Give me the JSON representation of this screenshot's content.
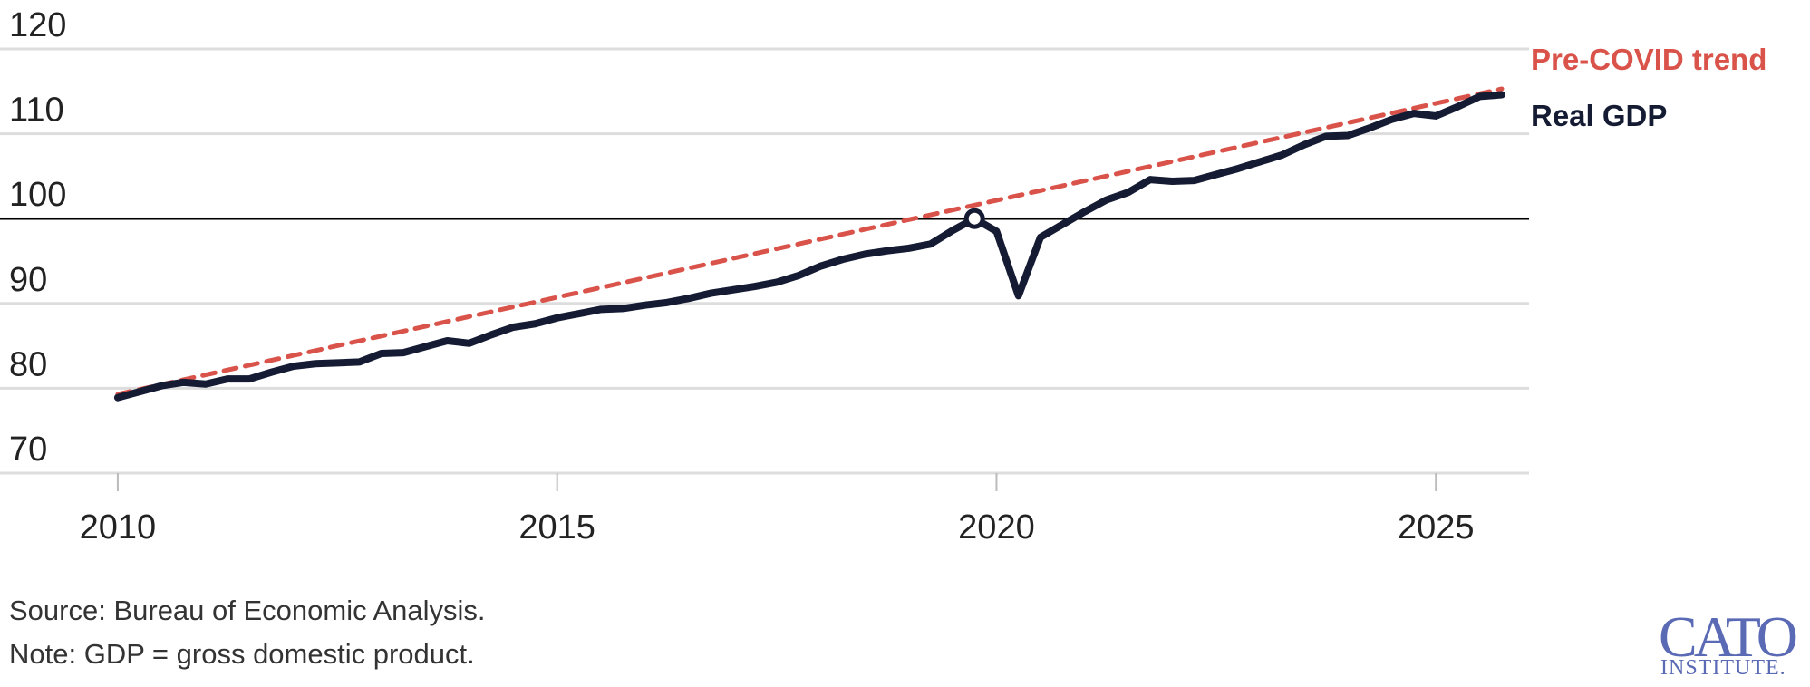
{
  "chart_data": {
    "type": "line",
    "x": [
      2010,
      2010.25,
      2010.5,
      2010.75,
      2011,
      2011.25,
      2011.5,
      2011.75,
      2012,
      2012.25,
      2012.5,
      2012.75,
      2013,
      2013.25,
      2013.5,
      2013.75,
      2014,
      2014.25,
      2014.5,
      2014.75,
      2015,
      2015.25,
      2015.5,
      2015.75,
      2016,
      2016.25,
      2016.5,
      2016.75,
      2017,
      2017.25,
      2017.5,
      2017.75,
      2018,
      2018.25,
      2018.5,
      2018.75,
      2019,
      2019.25,
      2019.5,
      2019.75,
      2020,
      2020.25,
      2020.5,
      2020.75,
      2021,
      2021.25,
      2021.5,
      2021.75,
      2022,
      2022.25,
      2022.5,
      2022.75,
      2023,
      2023.25,
      2023.5,
      2023.75,
      2024,
      2024.25,
      2024.5,
      2024.75,
      2025,
      2025.25,
      2025.5,
      2025.75
    ],
    "series": [
      {
        "name": "Pre-COVID trend",
        "color": "#d9534a",
        "dash": true,
        "x": [
          2010,
          2025.75
        ],
        "values": [
          79.3,
          115.3
        ]
      },
      {
        "name": "Real GDP",
        "color": "#141b33",
        "values": [
          78.9,
          79.6,
          80.3,
          80.7,
          80.5,
          81.1,
          81.1,
          81.9,
          82.6,
          82.9,
          83.0,
          83.1,
          84.1,
          84.2,
          84.9,
          85.6,
          85.3,
          86.3,
          87.2,
          87.6,
          88.3,
          88.8,
          89.3,
          89.4,
          89.8,
          90.1,
          90.6,
          91.2,
          91.6,
          92.0,
          92.5,
          93.3,
          94.4,
          95.2,
          95.8,
          96.2,
          96.5,
          97.0,
          98.6,
          100,
          98.5,
          90.9,
          97.8,
          99.3,
          100.8,
          102.2,
          103.1,
          104.6,
          104.4,
          104.5,
          105.2,
          105.9,
          106.7,
          107.5,
          108.7,
          109.7,
          109.8,
          110.7,
          111.7,
          112.4,
          112.1,
          113.2,
          114.4,
          114.6
        ]
      }
    ],
    "xlim": [
      2008.66,
      2026.06
    ],
    "xticks": [
      2010,
      2015,
      2020,
      2025
    ],
    "ylim": [
      70,
      120
    ],
    "yticks": [
      70,
      80,
      90,
      100,
      110,
      120
    ],
    "baseline": 100,
    "grid": true,
    "source": "Source: Bureau of Economic Analysis.",
    "note": "Note: GDP = gross domestic product.",
    "logo": [
      "CATO",
      "INSTITUTE."
    ]
  }
}
